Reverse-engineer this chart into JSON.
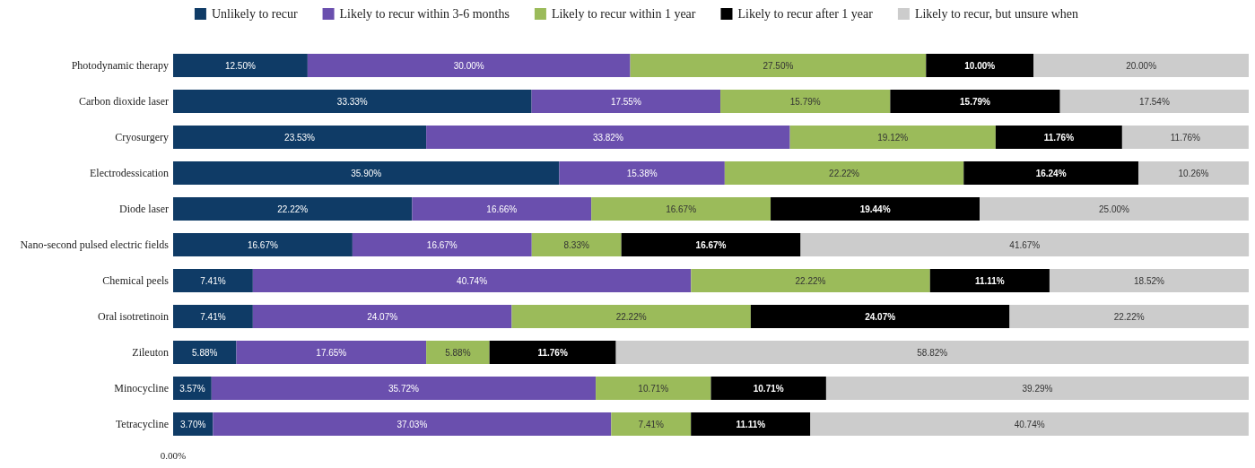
{
  "chart_data": {
    "type": "bar",
    "orientation": "horizontal",
    "stacked": true,
    "legend": "top",
    "categories": [
      "Photodynamic therapy",
      "Carbon dioxide laser",
      "Cryosurgery",
      "Electrodessication",
      "Diode laser",
      "Nano-second pulsed electric fields",
      "Chemical peels",
      "Oral isotretinoin",
      "Zileuton",
      "Minocycline",
      "Tetracycline"
    ],
    "xlim": [
      0,
      100
    ],
    "annotations": [
      "0.00%"
    ],
    "series": [
      {
        "name": "Unlikely to recur",
        "color": "#0f3b66",
        "values": [
          12.5,
          33.33,
          23.53,
          35.9,
          22.22,
          16.67,
          7.41,
          7.41,
          5.88,
          3.57,
          3.7
        ],
        "value_labels": [
          "12.50%",
          "33.33%",
          "23.53%",
          "35.90%",
          "22.22%",
          "16.67%",
          "7.41%",
          "7.41%",
          "5.88%",
          "3.57%",
          "3.70%"
        ]
      },
      {
        "name": "Likely to recur within 3-6 months",
        "color": "#6a4fae",
        "values": [
          30,
          17.55,
          33.82,
          15.38,
          16.66,
          16.67,
          40.74,
          24.07,
          17.65,
          35.72,
          37.03
        ],
        "value_labels": [
          "30.00%",
          "17.55%",
          "33.82%",
          "15.38%",
          "16.66%",
          "16.67%",
          "40.74%",
          "24.07%",
          "17.65%",
          "35.72%",
          "37.03%"
        ]
      },
      {
        "name": "Likely to recur within 1 year",
        "color": "#9bbb5a",
        "values": [
          27.5,
          15.79,
          19.12,
          22.22,
          16.67,
          8.33,
          22.22,
          22.22,
          5.88,
          10.71,
          7.41
        ],
        "value_labels": [
          "27.50%",
          "15.79%",
          "19.12%",
          "22.22%",
          "16.67%",
          "8.33%",
          "22.22%",
          "22.22%",
          "5.88%",
          "10.71%",
          "7.41%"
        ]
      },
      {
        "name": "Likely to recur after 1 year",
        "color": "#000000",
        "values": [
          10,
          15.79,
          11.76,
          16.24,
          19.44,
          16.67,
          11.11,
          24.07,
          11.76,
          10.71,
          11.11
        ],
        "value_labels": [
          "10.00%",
          "15.79%",
          "11.76%",
          "16.24%",
          "19.44%",
          "16.67%",
          "11.11%",
          "24.07%",
          "11.76%",
          "10.71%",
          "11.11%"
        ]
      },
      {
        "name": "Likely to recur, but unsure when",
        "color": "#cccccc",
        "values": [
          20,
          17.54,
          11.76,
          10.26,
          25,
          41.67,
          18.52,
          22.22,
          58.82,
          39.29,
          40.74
        ],
        "value_labels": [
          "20.00%",
          "17.54%",
          "11.76%",
          "10.26%",
          "25.00%",
          "41.67%",
          "18.52%",
          "22.22%",
          "58.82%",
          "39.29%",
          "40.74%"
        ]
      }
    ]
  }
}
